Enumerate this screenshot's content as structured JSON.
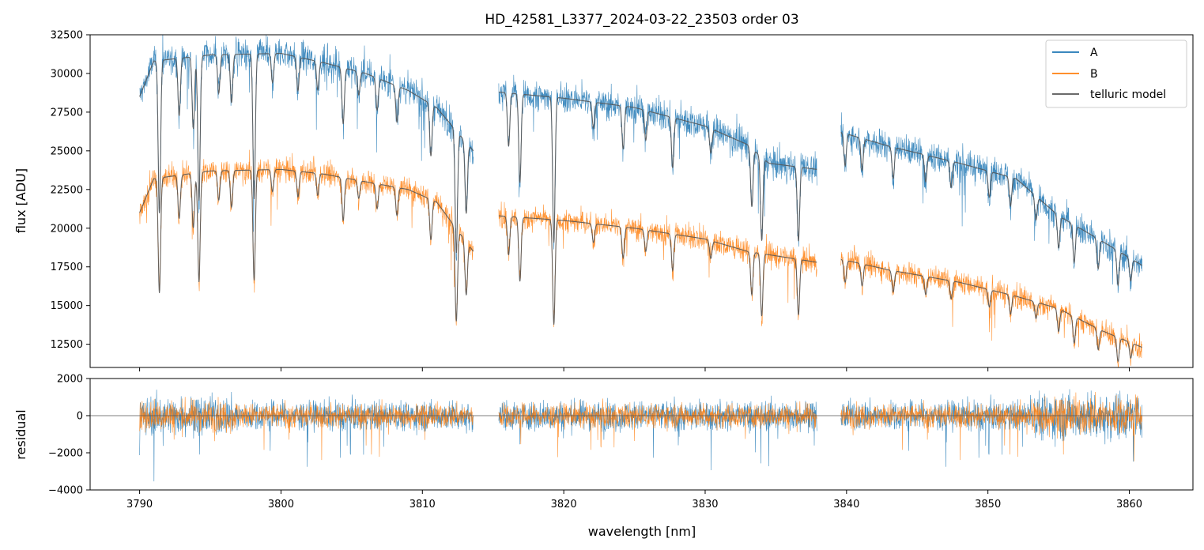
{
  "chart_data": [
    {
      "type": "line",
      "title": "HD_42581_L3377_2024-03-22_23503  order 03",
      "xlabel": "",
      "ylabel": "flux [ADU]",
      "xlim": [
        3786.5,
        3864.5
      ],
      "ylim": [
        11000,
        32500
      ],
      "yticks": [
        12500,
        15000,
        17500,
        20000,
        22500,
        25000,
        27500,
        30000,
        32500
      ],
      "yticklabels": [
        "12500",
        "15000",
        "17500",
        "20000",
        "22500",
        "25000",
        "27500",
        "30000",
        "32500"
      ],
      "xticks": [
        3790,
        3800,
        3810,
        3820,
        3830,
        3840,
        3850,
        3860
      ],
      "legend": {
        "placement": "top-right"
      },
      "segments": [
        [
          3790.0,
          3813.6
        ],
        [
          3815.4,
          3837.9
        ],
        [
          3839.6,
          3860.9
        ]
      ],
      "series": [
        {
          "name": "A",
          "color": "#1f77b4",
          "continuum": [
            [
              3790,
              28500
            ],
            [
              3791,
              30800
            ],
            [
              3795,
              31200
            ],
            [
              3800,
              31300
            ],
            [
              3803,
              30700
            ],
            [
              3806,
              30000
            ],
            [
              3809,
              28900
            ],
            [
              3811,
              27800
            ],
            [
              3813.6,
              25000
            ],
            [
              3815.4,
              28800
            ],
            [
              3820,
              28400
            ],
            [
              3825,
              27800
            ],
            [
              3830,
              26600
            ],
            [
              3833,
              25400
            ],
            [
              3834.5,
              24200
            ],
            [
              3837.9,
              23800
            ],
            [
              3839.6,
              26200
            ],
            [
              3843,
              25300
            ],
            [
              3848,
              24200
            ],
            [
              3852,
              23200
            ],
            [
              3855,
              20800
            ],
            [
              3858,
              19200
            ],
            [
              3860.9,
              17600
            ]
          ],
          "noise": 900
        },
        {
          "name": "B",
          "color": "#ff7f0e",
          "continuum": [
            [
              3790,
              21000
            ],
            [
              3791,
              23200
            ],
            [
              3795,
              23700
            ],
            [
              3800,
              23800
            ],
            [
              3803,
              23500
            ],
            [
              3806,
              23000
            ],
            [
              3809,
              22500
            ],
            [
              3811,
              21700
            ],
            [
              3813.6,
              18500
            ],
            [
              3815.4,
              20800
            ],
            [
              3820,
              20500
            ],
            [
              3825,
              20000
            ],
            [
              3830,
              19300
            ],
            [
              3833,
              18500
            ],
            [
              3837.9,
              17800
            ],
            [
              3839.6,
              18000
            ],
            [
              3843,
              17300
            ],
            [
              3848,
              16500
            ],
            [
              3852,
              15600
            ],
            [
              3855,
              14800
            ],
            [
              3858,
              13400
            ],
            [
              3860.9,
              12300
            ]
          ],
          "noise": 700
        },
        {
          "name": "telluric model",
          "color": "#555555"
        }
      ],
      "absorption_lines": [
        {
          "x": 3791.4,
          "depth": 0.32
        },
        {
          "x": 3792.8,
          "depth": 0.12
        },
        {
          "x": 3793.8,
          "depth": 0.15
        },
        {
          "x": 3794.2,
          "depth": 0.3
        },
        {
          "x": 3795.6,
          "depth": 0.08
        },
        {
          "x": 3796.5,
          "depth": 0.1
        },
        {
          "x": 3798.1,
          "depth": 0.3
        },
        {
          "x": 3799.4,
          "depth": 0.06
        },
        {
          "x": 3801.2,
          "depth": 0.07
        },
        {
          "x": 3802.6,
          "depth": 0.06
        },
        {
          "x": 3804.4,
          "depth": 0.12
        },
        {
          "x": 3805.5,
          "depth": 0.05
        },
        {
          "x": 3806.8,
          "depth": 0.07
        },
        {
          "x": 3808.2,
          "depth": 0.08
        },
        {
          "x": 3810.6,
          "depth": 0.12
        },
        {
          "x": 3812.4,
          "depth": 0.3
        },
        {
          "x": 3813.1,
          "depth": 0.18
        },
        {
          "x": 3816.1,
          "depth": 0.12
        },
        {
          "x": 3816.9,
          "depth": 0.2
        },
        {
          "x": 3819.3,
          "depth": 0.33
        },
        {
          "x": 3822.1,
          "depth": 0.06
        },
        {
          "x": 3824.2,
          "depth": 0.1
        },
        {
          "x": 3825.8,
          "depth": 0.07
        },
        {
          "x": 3827.7,
          "depth": 0.12
        },
        {
          "x": 3830.4,
          "depth": 0.06
        },
        {
          "x": 3833.3,
          "depth": 0.15
        },
        {
          "x": 3834.0,
          "depth": 0.22
        },
        {
          "x": 3836.6,
          "depth": 0.2
        },
        {
          "x": 3839.9,
          "depth": 0.08
        },
        {
          "x": 3841.1,
          "depth": 0.08
        },
        {
          "x": 3843.3,
          "depth": 0.08
        },
        {
          "x": 3845.6,
          "depth": 0.07
        },
        {
          "x": 3847.4,
          "depth": 0.07
        },
        {
          "x": 3850.1,
          "depth": 0.07
        },
        {
          "x": 3851.6,
          "depth": 0.08
        },
        {
          "x": 3853.4,
          "depth": 0.07
        },
        {
          "x": 3855.0,
          "depth": 0.1
        },
        {
          "x": 3856.1,
          "depth": 0.12
        },
        {
          "x": 3857.8,
          "depth": 0.1
        },
        {
          "x": 3859.2,
          "depth": 0.12
        },
        {
          "x": 3860.1,
          "depth": 0.08
        }
      ]
    },
    {
      "type": "line",
      "title": "",
      "xlabel": "wavelength [nm]",
      "ylabel": "residual",
      "xlim": [
        3786.5,
        3864.5
      ],
      "ylim": [
        -4000,
        2000
      ],
      "yticks": [
        -4000,
        -2000,
        0,
        2000
      ],
      "yticklabels": [
        "−4000",
        "−2000",
        "0",
        "2000"
      ],
      "xticks": [
        3790,
        3800,
        3810,
        3820,
        3830,
        3840,
        3850,
        3860
      ],
      "xticklabels": [
        "3790",
        "3800",
        "3810",
        "3820",
        "3830",
        "3840",
        "3850",
        "3860"
      ],
      "zero_line": true,
      "segments": [
        [
          3790.0,
          3813.6
        ],
        [
          3815.4,
          3837.9
        ],
        [
          3839.6,
          3860.9
        ]
      ],
      "series": [
        {
          "name": "A",
          "color": "#1f77b4",
          "noise": 800
        },
        {
          "name": "B",
          "color": "#ff7f0e",
          "noise": 650
        }
      ]
    }
  ]
}
